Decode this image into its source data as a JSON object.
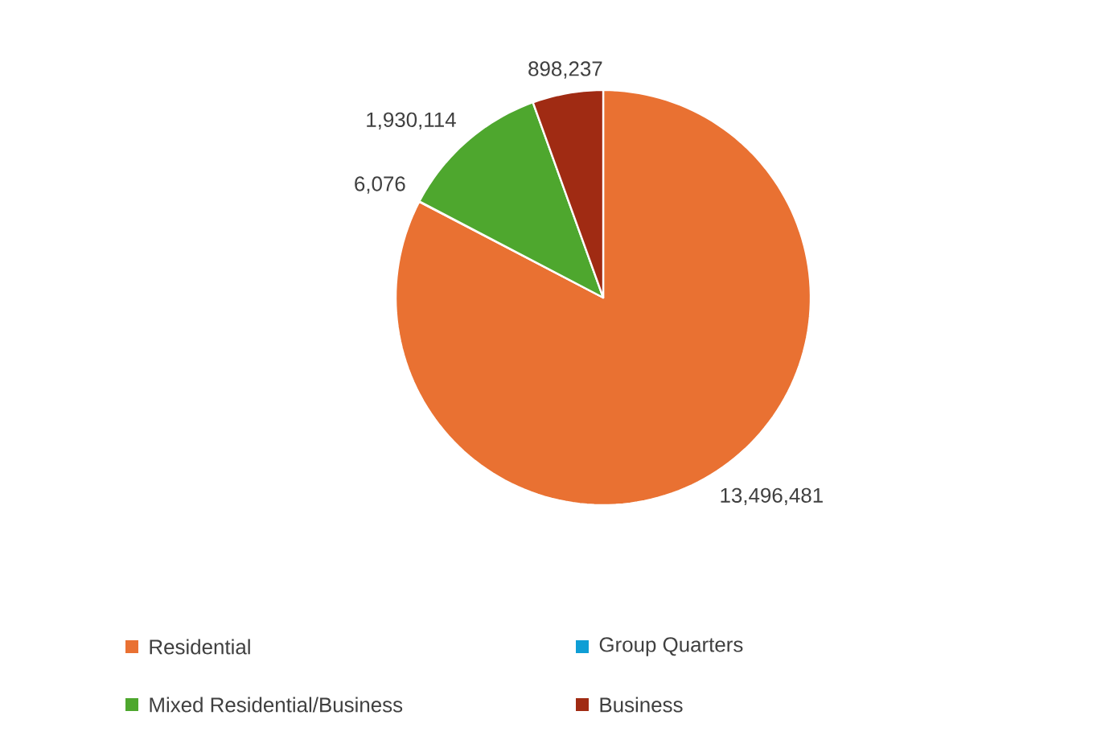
{
  "chart_data": {
    "type": "pie",
    "categories": [
      "Residential",
      "Group Quarters",
      "Mixed Residential/Business",
      "Business"
    ],
    "values": [
      13496481,
      6076,
      1930114,
      898237
    ],
    "value_labels": [
      "13,496,481",
      "6,076",
      "1,930,114",
      "898,237"
    ],
    "colors": [
      "#e97132",
      "#0f9ed5",
      "#4ea72e",
      "#a02b13"
    ],
    "legend": "bottom"
  }
}
